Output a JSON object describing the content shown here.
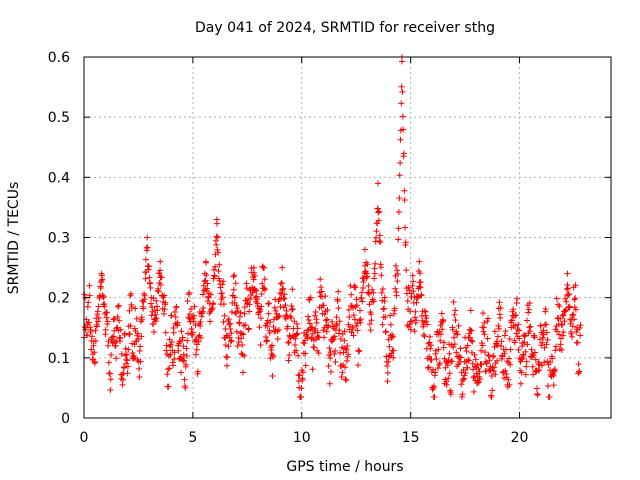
{
  "chart_data": {
    "type": "scatter",
    "title": "Day 041 of 2024, SRMTID for receiver sthg",
    "xlabel": "GPS time / hours",
    "ylabel": "SRMTID / TECUs",
    "xlim": [
      0,
      24.2
    ],
    "ylim": [
      0,
      0.6
    ],
    "xticks": [
      0,
      5,
      10,
      15,
      20
    ],
    "yticks": [
      0,
      0.1,
      0.2,
      0.3,
      0.4,
      0.5,
      0.6
    ],
    "xtick_labels": [
      "0",
      "5",
      "10",
      "15",
      "20"
    ],
    "ytick_labels": [
      "0",
      "0.1",
      "0.2",
      "0.3",
      "0.4",
      "0.5",
      "0.6"
    ],
    "grid": true,
    "marker": "+",
    "marker_color": "#ff0000",
    "time_range_hours": [
      0,
      22.8
    ],
    "series": [
      {
        "name": "SRMTID",
        "profile_hours": [
          0,
          0.5,
          0.8,
          1.2,
          1.7,
          2.2,
          2.8,
          3.3,
          3.8,
          4.3,
          5.0,
          5.6,
          6.0,
          6.5,
          7.0,
          7.6,
          8.1,
          8.6,
          9.0,
          9.3,
          9.7,
          10.0,
          10.4,
          10.8,
          11.3,
          11.8,
          12.3,
          12.8,
          13.2,
          13.6,
          14.0,
          14.4,
          14.8,
          15.2,
          15.6,
          16.0,
          16.5,
          17.0,
          17.5,
          18.0,
          18.5,
          19.0,
          19.5,
          20.0,
          20.5,
          21.0,
          21.5,
          22.0,
          22.5,
          22.8
        ],
        "profile_typical": [
          0.14,
          0.14,
          0.17,
          0.13,
          0.12,
          0.12,
          0.17,
          0.18,
          0.14,
          0.12,
          0.14,
          0.18,
          0.18,
          0.16,
          0.16,
          0.17,
          0.18,
          0.15,
          0.14,
          0.16,
          0.11,
          0.09,
          0.14,
          0.17,
          0.14,
          0.12,
          0.15,
          0.18,
          0.19,
          0.16,
          0.14,
          0.17,
          0.17,
          0.15,
          0.12,
          0.1,
          0.11,
          0.11,
          0.1,
          0.1,
          0.1,
          0.11,
          0.12,
          0.14,
          0.11,
          0.1,
          0.11,
          0.14,
          0.15,
          0.14
        ],
        "peaks": [
          {
            "x": 0.8,
            "y": 0.24
          },
          {
            "x": 2.9,
            "y": 0.3
          },
          {
            "x": 3.5,
            "y": 0.26
          },
          {
            "x": 5.6,
            "y": 0.26
          },
          {
            "x": 6.1,
            "y": 0.33
          },
          {
            "x": 7.8,
            "y": 0.25
          },
          {
            "x": 9.1,
            "y": 0.25
          },
          {
            "x": 12.9,
            "y": 0.28
          },
          {
            "x": 13.5,
            "y": 0.39
          },
          {
            "x": 14.6,
            "y": 0.6
          },
          {
            "x": 15.4,
            "y": 0.26
          },
          {
            "x": 22.2,
            "y": 0.24
          }
        ]
      }
    ]
  }
}
